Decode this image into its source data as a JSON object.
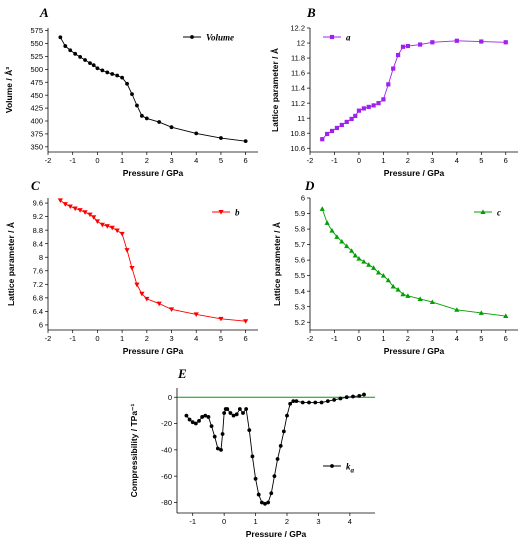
{
  "chart_data": [
    {
      "id": "A",
      "type": "line",
      "panel_label": "A",
      "xlabel": "Pressure / GPa",
      "ylabel": "Volume / Å³",
      "xlim": [
        -2,
        6.5
      ],
      "ylim": [
        340,
        580
      ],
      "xticks": [
        -2,
        -1,
        0,
        1,
        2,
        3,
        4,
        5,
        6
      ],
      "yticks": [
        350,
        375,
        400,
        425,
        450,
        475,
        500,
        525,
        550,
        575
      ],
      "legend_position": "top-right",
      "series": [
        {
          "name": "Volume",
          "color": "#000000",
          "marker": "circle",
          "x": [
            -1.5,
            -1.3,
            -1.1,
            -0.9,
            -0.7,
            -0.5,
            -0.3,
            -0.15,
            0,
            0.2,
            0.4,
            0.6,
            0.8,
            1.0,
            1.2,
            1.4,
            1.6,
            1.8,
            2.0,
            2.5,
            3.0,
            4.0,
            5.0,
            6.0
          ],
          "y": [
            562,
            545,
            537,
            530,
            524,
            518,
            512,
            508,
            502,
            498,
            494,
            491,
            488,
            484,
            472,
            452,
            430,
            410,
            405,
            398,
            388,
            376,
            367,
            361
          ]
        }
      ]
    },
    {
      "id": "B",
      "type": "line",
      "panel_label": "B",
      "xlabel": "Pressure / GPa",
      "ylabel": "Lattice parameter / Å",
      "xlim": [
        -2,
        6.5
      ],
      "ylim": [
        10.55,
        12.2
      ],
      "xticks": [
        -2,
        -1,
        0,
        1,
        2,
        3,
        4,
        5,
        6
      ],
      "yticks": [
        10.6,
        10.8,
        11.0,
        11.2,
        11.4,
        11.6,
        11.8,
        12.0,
        12.2
      ],
      "legend_position": "top-left",
      "series": [
        {
          "name": "a",
          "color": "#a020f0",
          "marker": "square",
          "x": [
            -1.5,
            -1.3,
            -1.1,
            -0.9,
            -0.7,
            -0.5,
            -0.3,
            -0.15,
            0,
            0.2,
            0.4,
            0.6,
            0.8,
            1.0,
            1.2,
            1.4,
            1.6,
            1.8,
            2.0,
            2.5,
            3.0,
            4.0,
            5.0,
            6.0
          ],
          "y": [
            10.72,
            10.79,
            10.83,
            10.87,
            10.91,
            10.95,
            10.99,
            11.03,
            11.1,
            11.13,
            11.15,
            11.17,
            11.2,
            11.25,
            11.45,
            11.66,
            11.84,
            11.95,
            11.96,
            11.98,
            12.01,
            12.03,
            12.02,
            12.01
          ]
        }
      ]
    },
    {
      "id": "C",
      "type": "line",
      "panel_label": "C",
      "xlabel": "Pressure / GPa",
      "ylabel": "Lattice parameter / Å",
      "xlim": [
        -2,
        6.5
      ],
      "ylim": [
        5.85,
        9.75
      ],
      "xticks": [
        -2,
        -1,
        0,
        1,
        2,
        3,
        4,
        5,
        6
      ],
      "yticks": [
        6.0,
        6.4,
        6.8,
        7.2,
        7.6,
        8.0,
        8.4,
        8.8,
        9.2,
        9.6
      ],
      "legend_position": "top-right",
      "series": [
        {
          "name": "b",
          "color": "#ff0000",
          "marker": "triangle-down",
          "x": [
            -1.5,
            -1.3,
            -1.1,
            -0.9,
            -0.7,
            -0.5,
            -0.3,
            -0.15,
            0,
            0.2,
            0.4,
            0.6,
            0.8,
            1.0,
            1.2,
            1.4,
            1.6,
            1.8,
            2.0,
            2.5,
            3.0,
            4.0,
            5.0,
            6.0
          ],
          "y": [
            9.68,
            9.57,
            9.5,
            9.44,
            9.39,
            9.33,
            9.26,
            9.18,
            9.06,
            8.96,
            8.92,
            8.87,
            8.79,
            8.69,
            8.21,
            7.68,
            7.19,
            6.92,
            6.77,
            6.63,
            6.46,
            6.31,
            6.18,
            6.11
          ]
        }
      ]
    },
    {
      "id": "D",
      "type": "line",
      "panel_label": "D",
      "xlabel": "Pressure / GPa",
      "ylabel": "Lattice parameter / Å",
      "xlim": [
        -2,
        6.5
      ],
      "ylim": [
        5.15,
        6.0
      ],
      "xticks": [
        -2,
        -1,
        0,
        1,
        2,
        3,
        4,
        5,
        6
      ],
      "yticks": [
        5.2,
        5.3,
        5.4,
        5.5,
        5.6,
        5.7,
        5.8,
        5.9,
        6.0
      ],
      "legend_position": "top-right",
      "series": [
        {
          "name": "c",
          "color": "#00a000",
          "marker": "triangle-up",
          "x": [
            -1.5,
            -1.3,
            -1.1,
            -0.9,
            -0.7,
            -0.5,
            -0.3,
            -0.15,
            0,
            0.2,
            0.4,
            0.6,
            0.8,
            1.0,
            1.2,
            1.4,
            1.6,
            1.8,
            2.0,
            2.5,
            3.0,
            4.0,
            5.0,
            6.0
          ],
          "y": [
            5.93,
            5.84,
            5.79,
            5.75,
            5.72,
            5.69,
            5.66,
            5.63,
            5.61,
            5.59,
            5.57,
            5.55,
            5.52,
            5.5,
            5.47,
            5.43,
            5.41,
            5.38,
            5.37,
            5.35,
            5.33,
            5.28,
            5.26,
            5.24
          ]
        }
      ]
    },
    {
      "id": "E",
      "type": "line",
      "panel_label": "E",
      "xlabel": "Pressure / GPa",
      "ylabel": "Compressibility / TPa⁻¹",
      "xlim": [
        -1.5,
        4.8
      ],
      "ylim": [
        -88,
        7
      ],
      "xticks": [
        -1,
        0,
        1,
        2,
        3,
        4
      ],
      "yticks": [
        0,
        -20,
        -40,
        -60,
        -80
      ],
      "legend_position": "right",
      "reference_line": {
        "y": 0,
        "color": "#00a000"
      },
      "series": [
        {
          "name": "k_a",
          "label_main": "k",
          "label_sub": "a",
          "color": "#000000",
          "marker": "circle",
          "x": [
            -1.2,
            -1.1,
            -1.0,
            -0.9,
            -0.8,
            -0.7,
            -0.6,
            -0.5,
            -0.4,
            -0.3,
            -0.2,
            -0.1,
            -0.05,
            0.0,
            0.05,
            0.1,
            0.2,
            0.3,
            0.4,
            0.5,
            0.6,
            0.7,
            0.8,
            0.9,
            1.0,
            1.1,
            1.2,
            1.3,
            1.4,
            1.5,
            1.6,
            1.7,
            1.8,
            1.9,
            2.0,
            2.1,
            2.2,
            2.3,
            2.5,
            2.7,
            2.9,
            3.1,
            3.3,
            3.5,
            3.7,
            3.9,
            4.1,
            4.3,
            4.45
          ],
          "y": [
            -14,
            -17,
            -19,
            -20,
            -18,
            -15,
            -14,
            -15,
            -22,
            -30,
            -39,
            -40,
            -28,
            -12,
            -9,
            -9,
            -12,
            -14,
            -13,
            -9,
            -12,
            -9,
            -25,
            -45,
            -62,
            -74,
            -80,
            -81,
            -80,
            -73,
            -60,
            -47,
            -37,
            -26,
            -14,
            -5,
            -3,
            -3,
            -4,
            -4,
            -4,
            -4,
            -3,
            -2,
            -1,
            0,
            0.5,
            1,
            2
          ]
        }
      ]
    }
  ]
}
